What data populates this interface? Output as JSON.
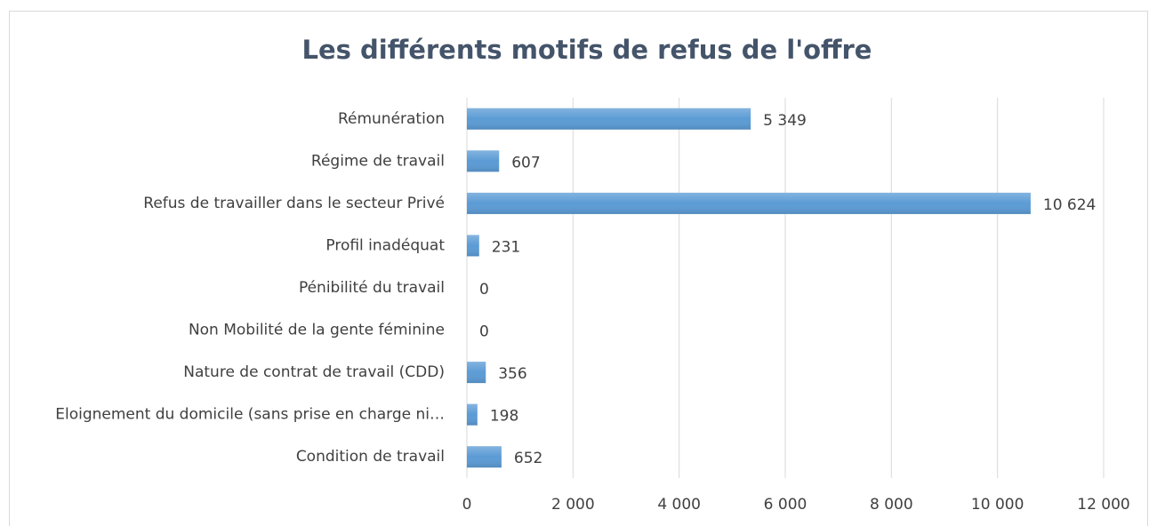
{
  "chart_data": {
    "type": "bar",
    "orientation": "horizontal",
    "title": "Les différents motifs de refus de l'offre",
    "categories": [
      "Rémunération",
      "Régime de travail",
      "Refus de travailler dans le secteur Privé",
      "Profil inadéquat",
      "Pénibilité du travail",
      "Non Mobilité de la gente féminine",
      "Nature de contrat de travail (CDD)",
      "Eloignement du domicile (sans prise en charge ni…",
      "Condition de travail"
    ],
    "values": [
      5349,
      607,
      10624,
      231,
      0,
      0,
      356,
      198,
      652
    ],
    "value_labels": [
      "5 349",
      "607",
      "10 624",
      "231",
      "0",
      "0",
      "356",
      "198",
      "652"
    ],
    "color": "#5b9bd5",
    "xlim": [
      0,
      12000
    ],
    "xticks": [
      0,
      {
        "value": 2000,
        "label": "2 000"
      },
      {
        "value": 4000,
        "label": "4 000"
      },
      {
        "value": 6000,
        "label": "6 000"
      },
      {
        "value": 8000,
        "label": "8 000"
      },
      {
        "value": 10000,
        "label": "10 000"
      },
      {
        "value": 12000,
        "label": "12 000"
      }
    ],
    "grid": true
  }
}
